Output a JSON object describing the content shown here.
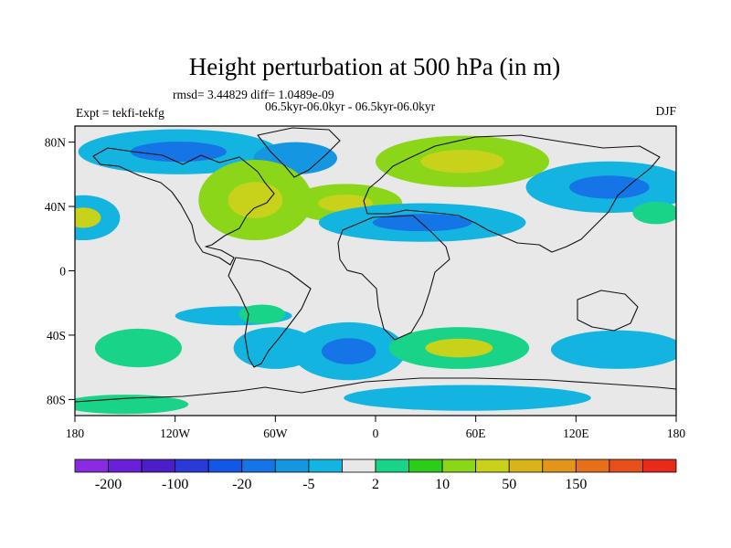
{
  "chart_data": {
    "type": "heatmap",
    "title": "Height perturbation at 500 hPa (in m)",
    "stats_line": "rmsd= 3.44829 diff= 1.0489e-09",
    "comparison_line": "06.5kyr-06.0kyr - 06.5kyr-06.0kyr",
    "experiment_label": "Expt = tekfi-tekfg",
    "season": "DJF",
    "x_axis": {
      "range": [
        -180,
        180
      ],
      "ticks": [
        {
          "v": -180,
          "label": "180"
        },
        {
          "v": -120,
          "label": "120W"
        },
        {
          "v": -60,
          "label": "60W"
        },
        {
          "v": 0,
          "label": "0"
        },
        {
          "v": 60,
          "label": "60E"
        },
        {
          "v": 120,
          "label": "120E"
        },
        {
          "v": 180,
          "label": "180"
        }
      ]
    },
    "y_axis": {
      "range": [
        -90,
        90
      ],
      "ticks": [
        {
          "v": 80,
          "label": "80N"
        },
        {
          "v": 40,
          "label": "40N"
        },
        {
          "v": 0,
          "label": "0"
        },
        {
          "v": -40,
          "label": "40S"
        },
        {
          "v": -80,
          "label": "80S"
        }
      ]
    },
    "colorbar": {
      "colors": [
        "#8a2be2",
        "#6a1fd8",
        "#4b1ec8",
        "#2a3ad8",
        "#1457e6",
        "#1575e6",
        "#1496e0",
        "#14b4e0",
        "#e8e8e8",
        "#19d488",
        "#2ecc1a",
        "#8cd61a",
        "#c8d21a",
        "#d8b41a",
        "#e0961a",
        "#e6701a",
        "#e6501a",
        "#e82a1a"
      ],
      "labels": [
        {
          "after": 1,
          "label": "-200"
        },
        {
          "after": 3,
          "label": "-100"
        },
        {
          "after": 5,
          "label": "-20"
        },
        {
          "after": 7,
          "label": "-5"
        },
        {
          "after": 9,
          "label": "2"
        },
        {
          "after": 11,
          "label": "10"
        },
        {
          "after": 13,
          "label": "50"
        },
        {
          "after": 15,
          "label": "150"
        }
      ]
    },
    "anomaly_regions": [
      {
        "lon": -175,
        "lat": 33,
        "rlon": 22,
        "rlat": 14,
        "level": -5,
        "core": 10
      },
      {
        "lon": -118,
        "lat": 74,
        "rlon": 60,
        "rlat": 14,
        "level": -5,
        "core": -20
      },
      {
        "lon": -48,
        "lat": 70,
        "rlon": 25,
        "rlat": 10,
        "level": -20
      },
      {
        "lon": -72,
        "lat": 44,
        "rlon": 34,
        "rlat": 25,
        "level": 10,
        "core": 10
      },
      {
        "lon": -18,
        "lat": 42,
        "rlon": 34,
        "rlat": 12,
        "level": 10,
        "core": 10
      },
      {
        "lon": 52,
        "lat": 68,
        "rlon": 52,
        "rlat": 16,
        "level": 10,
        "core": 10
      },
      {
        "lon": 28,
        "lat": 30,
        "rlon": 62,
        "rlat": 12,
        "level": -5,
        "core": -20
      },
      {
        "lon": 140,
        "lat": 52,
        "rlon": 50,
        "rlat": 16,
        "level": -5,
        "core": -20
      },
      {
        "lon": 168,
        "lat": 36,
        "rlon": 14,
        "rlat": 7,
        "level": 2
      },
      {
        "lon": -85,
        "lat": -28,
        "rlon": 35,
        "rlat": 6,
        "level": -5
      },
      {
        "lon": -68,
        "lat": -27,
        "rlon": 14,
        "rlat": 6,
        "level": 2
      },
      {
        "lon": -60,
        "lat": -48,
        "rlon": 25,
        "rlat": 13,
        "level": -5
      },
      {
        "lon": -142,
        "lat": -48,
        "rlon": 26,
        "rlat": 12,
        "level": 2
      },
      {
        "lon": -16,
        "lat": -50,
        "rlon": 34,
        "rlat": 18,
        "level": -5,
        "core": -20
      },
      {
        "lon": 50,
        "lat": -48,
        "rlon": 42,
        "rlat": 13,
        "level": 2,
        "core": 10
      },
      {
        "lon": 145,
        "lat": -49,
        "rlon": 40,
        "rlat": 12,
        "level": -5
      },
      {
        "lon": 55,
        "lat": -79,
        "rlon": 74,
        "rlat": 8,
        "level": -5
      },
      {
        "lon": -150,
        "lat": -83,
        "rlon": 38,
        "rlat": 6,
        "level": 2
      }
    ]
  }
}
